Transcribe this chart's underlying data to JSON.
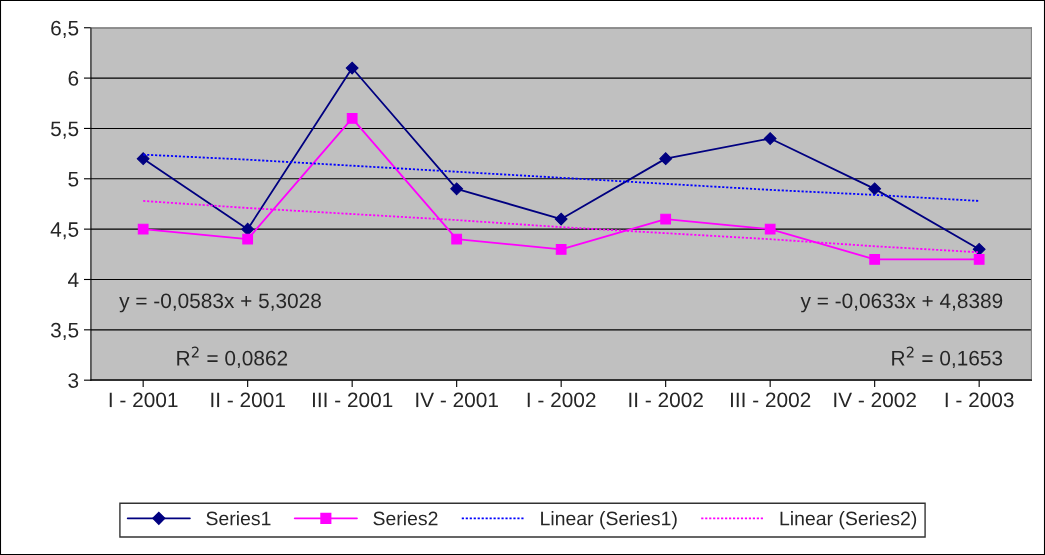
{
  "chart_data": {
    "type": "line",
    "categories": [
      "I - 2001",
      "II - 2001",
      "III - 2001",
      "IV - 2001",
      "I - 2002",
      "II - 2002",
      "III - 2002",
      "IV - 2002",
      "I - 2003"
    ],
    "series": [
      {
        "name": "Series1",
        "color": "#000080",
        "marker": "diamond",
        "line_style": "solid",
        "values": [
          5.2,
          4.5,
          6.1,
          4.9,
          4.6,
          5.2,
          5.4,
          4.9,
          4.3
        ]
      },
      {
        "name": "Series2",
        "color": "#ff00ff",
        "marker": "square",
        "line_style": "solid",
        "values": [
          4.5,
          4.4,
          5.6,
          4.4,
          4.3,
          4.6,
          4.5,
          4.2,
          4.2
        ]
      },
      {
        "name": "Linear (Series1)",
        "color": "#0000ff",
        "marker": "none",
        "line_style": "dotted",
        "values": [
          5.24,
          5.19,
          5.13,
          5.07,
          5.01,
          4.95,
          4.89,
          4.84,
          4.78
        ]
      },
      {
        "name": "Linear (Series2)",
        "color": "#ff00ff",
        "marker": "none",
        "line_style": "dotted",
        "values": [
          4.78,
          4.71,
          4.65,
          4.59,
          4.52,
          4.46,
          4.4,
          4.33,
          4.27
        ]
      }
    ],
    "ylim": [
      3,
      6.5
    ],
    "yticks": [
      3,
      {
        "value": 3.5,
        "label": "3,5"
      },
      4,
      {
        "value": 4.5,
        "label": "4,5"
      },
      5,
      {
        "value": 5.5,
        "label": "5,5"
      },
      6,
      {
        "value": 6.5,
        "label": "6,5"
      }
    ],
    "grid": "y",
    "legend": "bottom",
    "annotations": [
      "y = -0,0583x + 5,3028",
      "R$^{2}$ = 0,0862",
      "y = -0,0633x + 4,8389",
      "R$^{2}$ = 0,1653"
    ]
  }
}
